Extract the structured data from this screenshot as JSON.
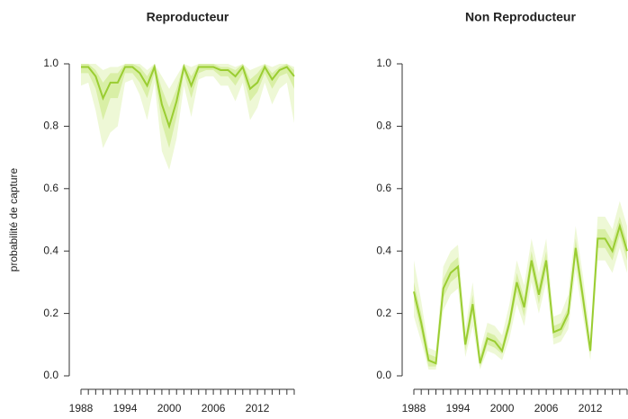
{
  "chart_data": [
    {
      "type": "line",
      "title": "Reproducteur",
      "y_label": "probabilité de capture",
      "x": [
        1988,
        1989,
        1990,
        1991,
        1992,
        1993,
        1994,
        1995,
        1996,
        1997,
        1998,
        1999,
        2000,
        2001,
        2002,
        2003,
        2004,
        2005,
        2006,
        2007,
        2008,
        2009,
        2010,
        2011,
        2012,
        2013,
        2014,
        2015,
        2016,
        2017
      ],
      "xlim": [
        1988,
        2017
      ],
      "xticks": [
        1988,
        1994,
        2000,
        2006,
        2012
      ],
      "ylim": [
        0,
        1
      ],
      "yticks": [
        {
          "value": 0,
          "label": "0.0"
        },
        0.2,
        0.4,
        0.6,
        0.8,
        {
          "value": 1,
          "label": "1.0"
        }
      ],
      "color": "#9acd32",
      "inner_color": "#d9efa6",
      "outer_color": "#eef8d6",
      "values": [
        0.99,
        0.99,
        0.96,
        0.89,
        0.94,
        0.94,
        0.99,
        0.99,
        0.97,
        0.93,
        0.99,
        0.87,
        0.8,
        0.88,
        0.99,
        0.93,
        0.99,
        0.99,
        0.99,
        0.98,
        0.98,
        0.96,
        0.99,
        0.92,
        0.94,
        0.99,
        0.95,
        0.98,
        0.99,
        0.96
      ],
      "inner_lower": [
        0.97,
        0.97,
        0.92,
        0.82,
        0.89,
        0.89,
        0.97,
        0.97,
        0.94,
        0.89,
        0.97,
        0.81,
        0.73,
        0.83,
        0.97,
        0.89,
        0.97,
        0.98,
        0.98,
        0.96,
        0.96,
        0.93,
        0.97,
        0.88,
        0.91,
        0.97,
        0.92,
        0.96,
        0.97,
        0.92
      ],
      "inner_upper": [
        1,
        1,
        0.98,
        0.94,
        0.97,
        0.97,
        1,
        1,
        0.99,
        0.96,
        1,
        0.92,
        0.86,
        0.92,
        1,
        0.96,
        1,
        1,
        1,
        0.99,
        0.99,
        0.98,
        1,
        0.95,
        0.97,
        1,
        0.97,
        0.99,
        1,
        0.98
      ],
      "outer_lower": [
        0.93,
        0.94,
        0.85,
        0.73,
        0.78,
        0.8,
        0.94,
        0.95,
        0.9,
        0.82,
        0.94,
        0.72,
        0.66,
        0.76,
        0.93,
        0.83,
        0.95,
        0.96,
        0.96,
        0.93,
        0.93,
        0.88,
        0.94,
        0.82,
        0.86,
        0.94,
        0.87,
        0.92,
        0.94,
        0.81
      ],
      "outer_upper": [
        1,
        1,
        1,
        0.98,
        0.99,
        0.99,
        1,
        1,
        1,
        0.98,
        1,
        0.96,
        0.92,
        0.96,
        1,
        0.99,
        1,
        1,
        1,
        1,
        1,
        0.99,
        1,
        0.98,
        0.99,
        1,
        0.99,
        1,
        1,
        0.99
      ]
    },
    {
      "type": "line",
      "title": "Non Reproducteur",
      "x": [
        1988,
        1989,
        1990,
        1991,
        1992,
        1993,
        1994,
        1995,
        1996,
        1997,
        1998,
        1999,
        2000,
        2001,
        2002,
        2003,
        2004,
        2005,
        2006,
        2007,
        2008,
        2009,
        2010,
        2011,
        2012,
        2013,
        2014,
        2015,
        2016,
        2017
      ],
      "xlim": [
        1988,
        2017
      ],
      "xticks": [
        1988,
        1994,
        2000,
        2006,
        2012
      ],
      "ylim": [
        0,
        1
      ],
      "yticks": [
        {
          "value": 0,
          "label": "0.0"
        },
        0.2,
        0.4,
        0.6,
        0.8,
        {
          "value": 1,
          "label": "1.0"
        }
      ],
      "color": "#9acd32",
      "inner_color": "#d9efa6",
      "outer_color": "#eef8d6",
      "values": [
        0.27,
        0.17,
        0.05,
        0.04,
        0.28,
        0.33,
        0.35,
        0.1,
        0.23,
        0.04,
        0.12,
        0.11,
        0.08,
        0.17,
        0.3,
        0.22,
        0.37,
        0.26,
        0.37,
        0.14,
        0.15,
        0.2,
        0.41,
        0.25,
        0.08,
        0.44,
        0.44,
        0.4,
        0.48,
        0.4
      ],
      "inner_lower": [
        0.24,
        0.14,
        0.03,
        0.03,
        0.25,
        0.3,
        0.32,
        0.08,
        0.2,
        0.03,
        0.1,
        0.09,
        0.07,
        0.15,
        0.27,
        0.19,
        0.34,
        0.23,
        0.34,
        0.12,
        0.13,
        0.18,
        0.38,
        0.22,
        0.07,
        0.41,
        0.41,
        0.37,
        0.45,
        0.37
      ],
      "inner_upper": [
        0.3,
        0.2,
        0.07,
        0.06,
        0.31,
        0.36,
        0.38,
        0.12,
        0.26,
        0.06,
        0.14,
        0.13,
        0.1,
        0.19,
        0.33,
        0.25,
        0.4,
        0.29,
        0.4,
        0.16,
        0.17,
        0.22,
        0.44,
        0.28,
        0.1,
        0.47,
        0.47,
        0.43,
        0.51,
        0.43
      ],
      "outer_lower": [
        0.19,
        0.11,
        0.02,
        0.02,
        0.21,
        0.26,
        0.28,
        0.06,
        0.16,
        0.02,
        0.08,
        0.07,
        0.05,
        0.12,
        0.23,
        0.16,
        0.3,
        0.2,
        0.3,
        0.1,
        0.11,
        0.15,
        0.34,
        0.19,
        0.05,
        0.37,
        0.37,
        0.33,
        0.41,
        0.33
      ],
      "outer_upper": [
        0.37,
        0.24,
        0.09,
        0.08,
        0.35,
        0.4,
        0.42,
        0.15,
        0.3,
        0.08,
        0.17,
        0.16,
        0.13,
        0.23,
        0.37,
        0.29,
        0.44,
        0.33,
        0.44,
        0.19,
        0.2,
        0.26,
        0.48,
        0.32,
        0.13,
        0.51,
        0.51,
        0.47,
        0.56,
        0.48
      ]
    }
  ]
}
